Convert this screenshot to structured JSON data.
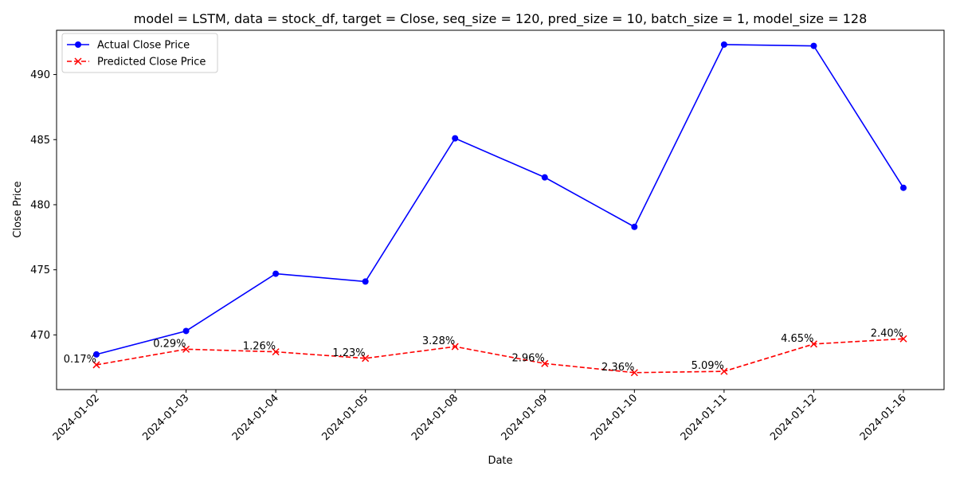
{
  "chart_data": {
    "type": "line",
    "title": "model = LSTM, data = stock_df, target = Close, seq_size = 120, pred_size = 10, batch_size = 1, model_size = 128",
    "xlabel": "Date",
    "ylabel": "Close Price",
    "categories": [
      "2024-01-02",
      "2024-01-03",
      "2024-01-04",
      "2024-01-05",
      "2024-01-08",
      "2024-01-09",
      "2024-01-10",
      "2024-01-11",
      "2024-01-12",
      "2024-01-16"
    ],
    "series": [
      {
        "name": "Actual Close Price",
        "color": "#0000ff",
        "marker": "circle",
        "linestyle": "solid",
        "values": [
          468.5,
          470.3,
          474.7,
          474.1,
          485.1,
          482.1,
          478.3,
          492.3,
          492.2,
          481.3
        ]
      },
      {
        "name": "Predicted Close Price",
        "color": "#ff0000",
        "marker": "x",
        "linestyle": "dashed",
        "values": [
          467.7,
          468.9,
          468.7,
          468.2,
          469.1,
          467.8,
          467.1,
          467.2,
          469.3,
          469.7
        ]
      }
    ],
    "annotations": [
      "0.17%",
      "0.29%",
      "1.26%",
      "1.23%",
      "3.28%",
      "2.96%",
      "2.36%",
      "5.09%",
      "4.65%",
      "2.40%"
    ],
    "yticks": [
      470,
      475,
      480,
      485,
      490
    ],
    "ylim": [
      465.8,
      493.4
    ],
    "grid": false,
    "legend_position": "upper left"
  }
}
